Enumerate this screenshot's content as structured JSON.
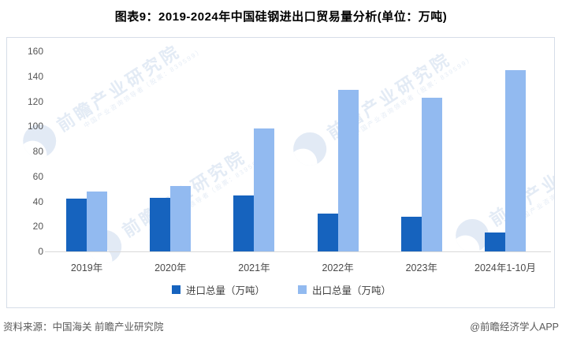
{
  "title": "图表9：2019-2024年中国硅钢进出口贸易量分析(单位：万吨)",
  "chart_data": {
    "type": "bar",
    "categories": [
      "2019年",
      "2020年",
      "2021年",
      "2022年",
      "2023年",
      "2024年1-10月"
    ],
    "series": [
      {
        "name": "进口总量（万吨）",
        "color": "#1663be",
        "values": [
          42,
          43,
          45,
          30,
          28,
          15
        ]
      },
      {
        "name": "出口总量（万吨）",
        "color": "#92baf0",
        "values": [
          48,
          52,
          98,
          129,
          123,
          145
        ]
      }
    ],
    "title": "图表9：2019-2024年中国硅钢进出口贸易量分析(单位：万吨)",
    "xlabel": "",
    "ylabel": "",
    "ylim": [
      0,
      160
    ],
    "yticks": [
      0,
      20,
      40,
      60,
      80,
      100,
      120,
      140,
      160
    ],
    "grid": false,
    "legend_position": "bottom"
  },
  "watermark": {
    "text": "前瞻产业研究院",
    "subtext": "中国产业咨询领导者（股票：839599）"
  },
  "footer": {
    "source": "资料来源：中国海关 前瞻产业研究院",
    "credit": "@前瞻经济学人APP"
  }
}
